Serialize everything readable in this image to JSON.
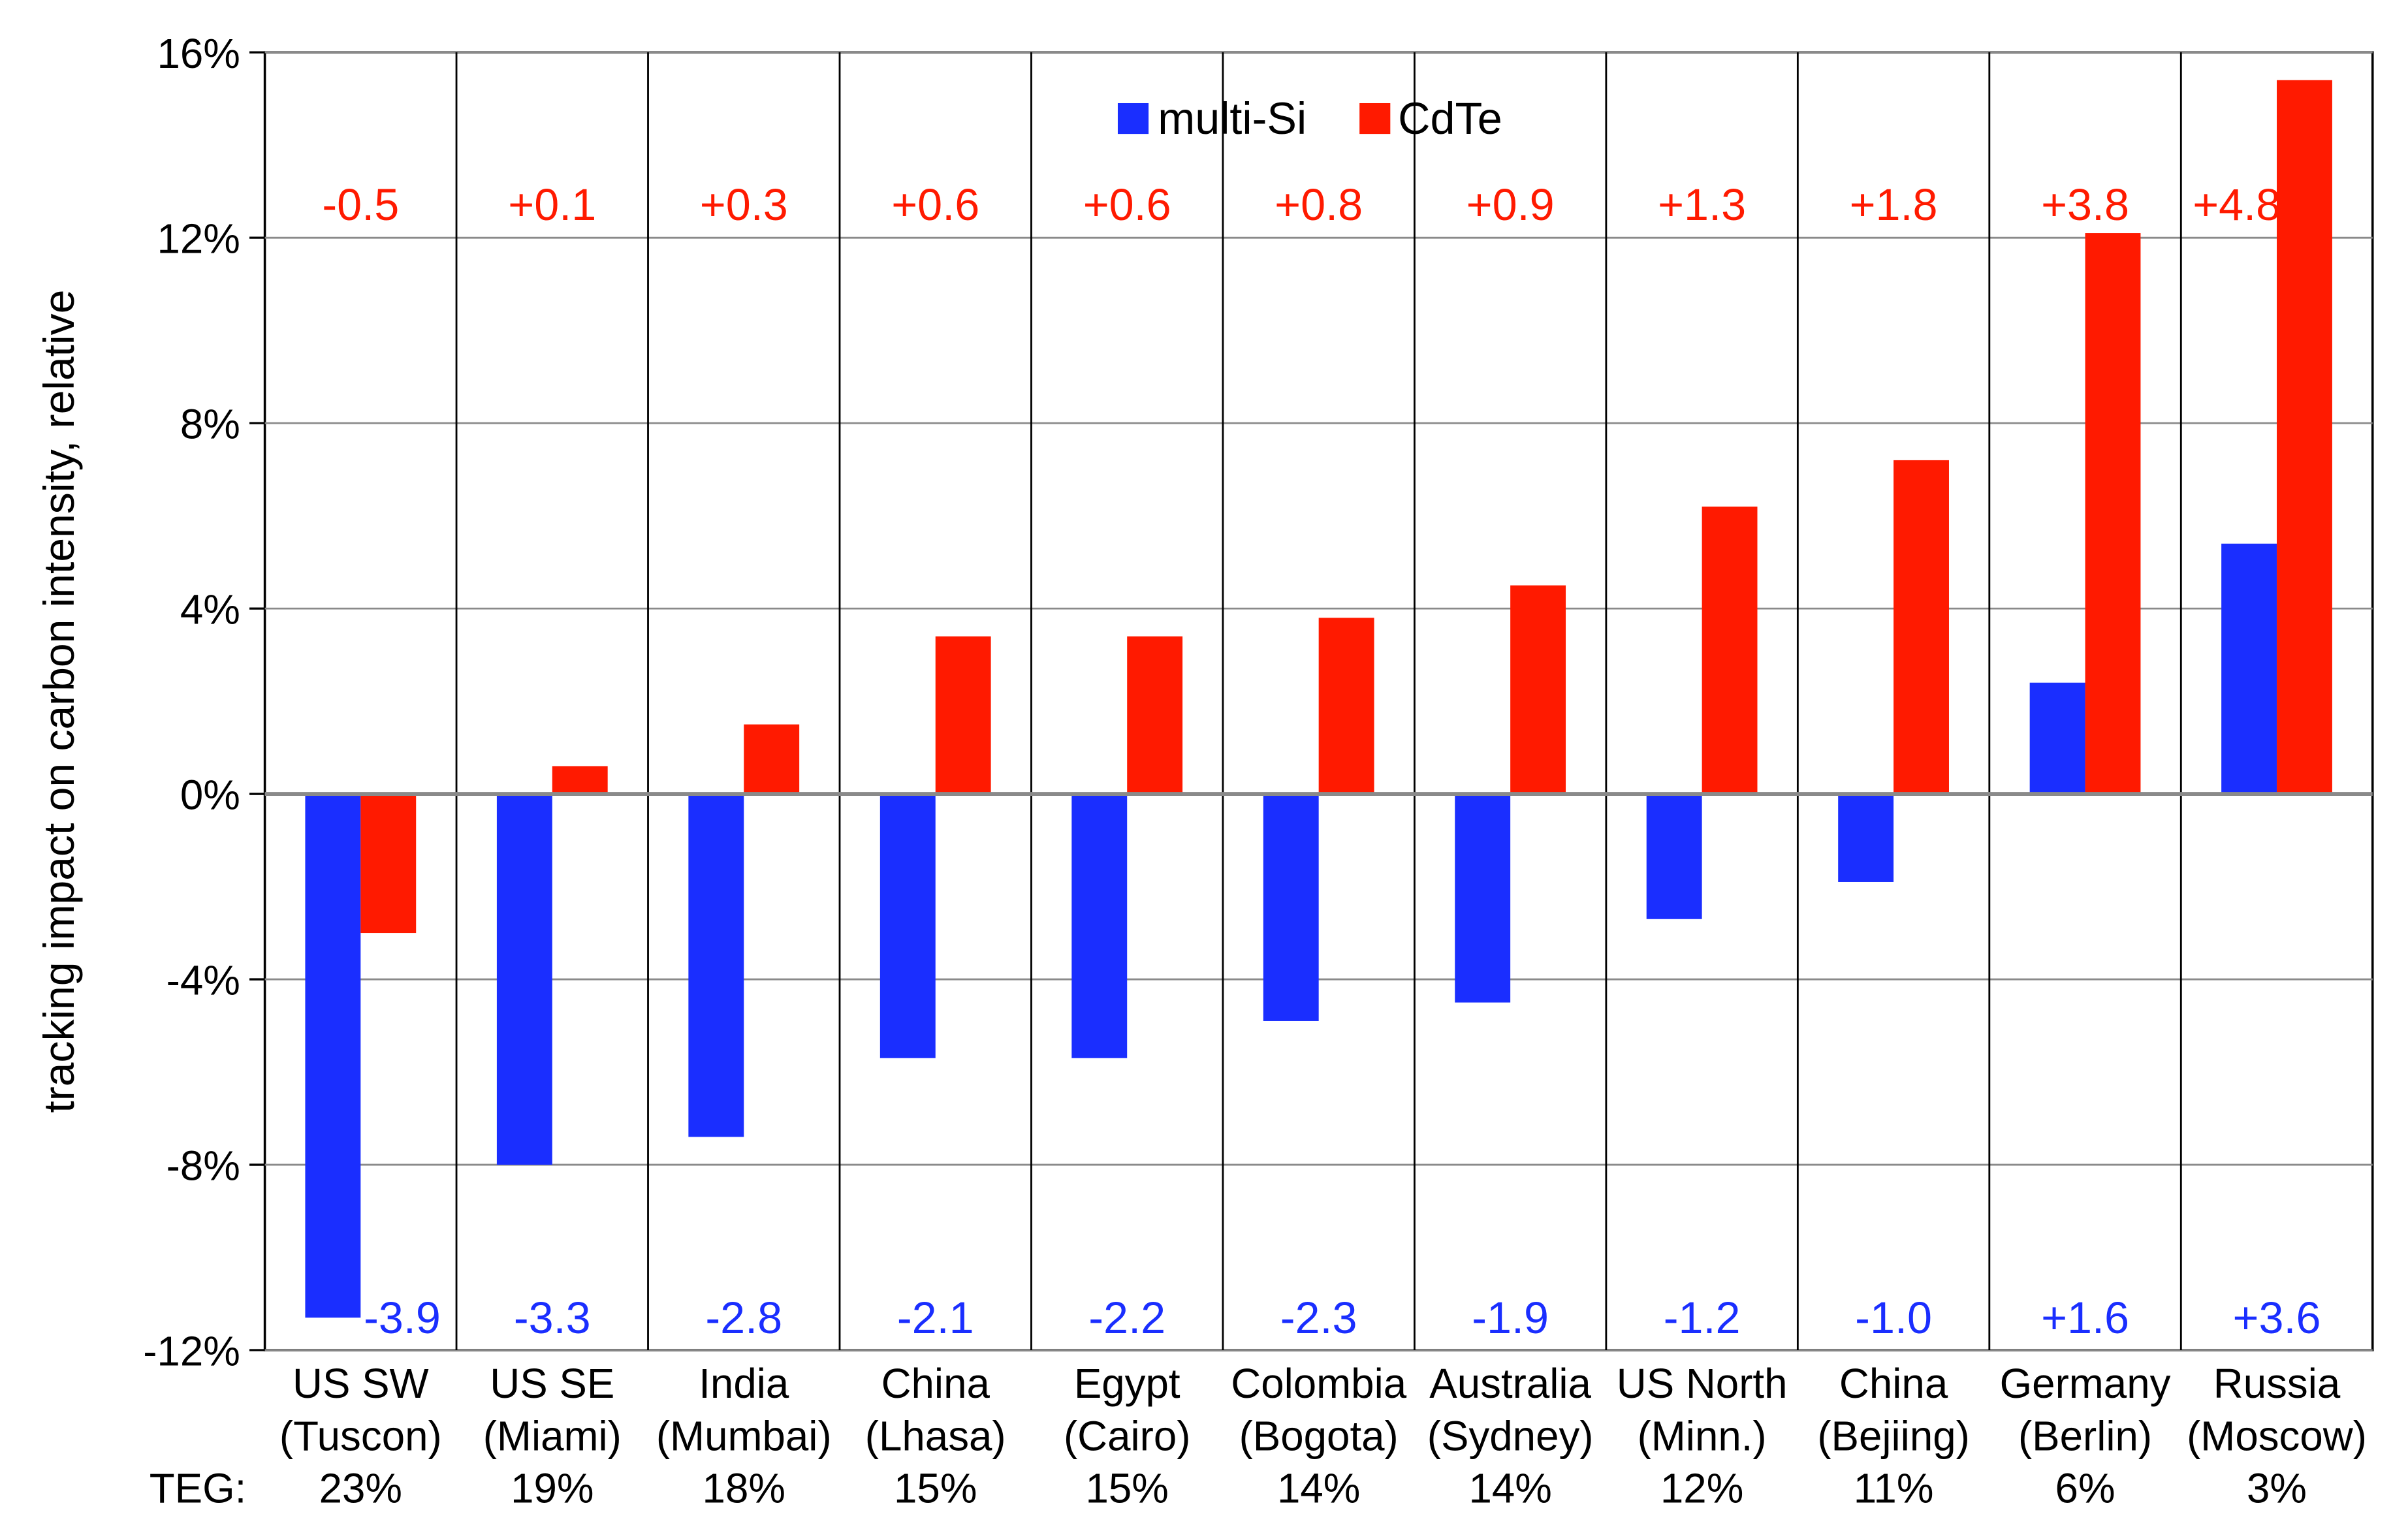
{
  "chart_data": {
    "type": "bar",
    "title": "",
    "xlabel": "",
    "ylabel": "tracking impact on carbon intensity, relative",
    "ylim": [
      -0.12,
      0.16
    ],
    "yticks": [
      -0.12,
      -0.08,
      -0.04,
      0,
      0.04,
      0.08,
      0.12,
      0.16
    ],
    "ytick_labels": [
      "-12%",
      "-8%",
      "-4%",
      "0%",
      "4%",
      "8%",
      "12%",
      "16%"
    ],
    "grid": true,
    "legend": {
      "position": "top-center",
      "entries": [
        "multi-Si",
        "CdTe"
      ]
    },
    "categories": [
      [
        "US SW",
        "(Tuscon)"
      ],
      [
        "US SE",
        "(Miami)"
      ],
      [
        "India",
        "(Mumbai)"
      ],
      [
        "China",
        "(Lhasa)"
      ],
      [
        "Egypt",
        "(Cairo)"
      ],
      [
        "Colombia",
        "(Bogota)"
      ],
      [
        "Australia",
        "(Sydney)"
      ],
      [
        "US North",
        "(Minn.)"
      ],
      [
        "China",
        "(Bejiing)"
      ],
      [
        "Germany",
        "(Berlin)"
      ],
      [
        "Russia",
        "(Moscow)"
      ]
    ],
    "teg_label": "TEG:",
    "teg_values": [
      "23%",
      "19%",
      "18%",
      "15%",
      "15%",
      "14%",
      "14%",
      "12%",
      "11%",
      "6%",
      "3%"
    ],
    "series": [
      {
        "name": "multi-Si",
        "color": "#1a2eff",
        "values": [
          -0.113,
          -0.08,
          -0.074,
          -0.057,
          -0.057,
          -0.049,
          -0.045,
          -0.027,
          -0.019,
          0.024,
          0.054
        ],
        "annotations": [
          "-3.9",
          "-3.3",
          "-2.8",
          "-2.1",
          "-2.2",
          "-2.3",
          "-1.9",
          "-1.2",
          "-1.0",
          "+1.6",
          "+3.6"
        ]
      },
      {
        "name": "CdTe",
        "color": "#ff1a00",
        "values": [
          -0.03,
          0.006,
          0.015,
          0.034,
          0.034,
          0.038,
          0.045,
          0.062,
          0.072,
          0.121,
          0.154
        ],
        "annotations": [
          "-0.5",
          "+0.1",
          "+0.3",
          "+0.6",
          "+0.6",
          "+0.8",
          "+0.9",
          "+1.3",
          "+1.8",
          "+3.8",
          "+4.8"
        ]
      }
    ]
  }
}
